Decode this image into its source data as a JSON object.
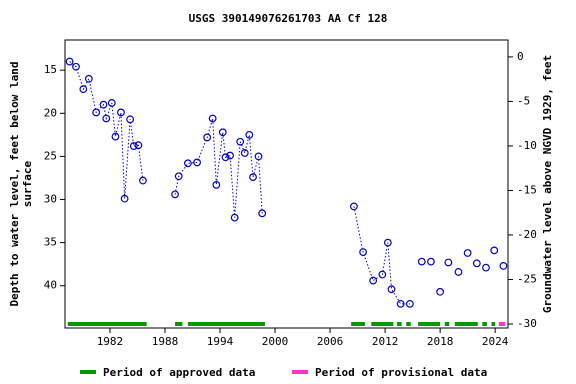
{
  "chart_data": {
    "type": "line",
    "title": "USGS 390149076261703 AA Cf 128",
    "y_label": "Depth to water level, feet below land surface",
    "y2_label": "Groundwater level above NGVD 1929, feet",
    "xlim": [
      1977.1,
      2025.4
    ],
    "xticks": [
      1982,
      1988,
      1994,
      2000,
      2006,
      2012,
      2018,
      2024
    ],
    "ylim": [
      11.5,
      44.9
    ],
    "y_inverted": true,
    "yticks": [
      15,
      20,
      25,
      30,
      35,
      40
    ],
    "y2lim": [
      -30.45,
      1.9
    ],
    "y2ticks": [
      0,
      -5,
      -10,
      -15,
      -20,
      -25,
      -30
    ],
    "grid": false,
    "series": [
      {
        "color": "#0000cc",
        "x": [
          1977.6,
          1978.3,
          1979.1,
          1979.7,
          1980.5,
          1981.3,
          1981.6,
          1982.2,
          1982.6,
          1983.2,
          1983.6,
          1984.2,
          1984.6,
          1985.1,
          1985.6,
          null,
          1989.1,
          1989.5,
          1990.5,
          1991.5,
          1992.6,
          1993.2,
          1993.6,
          1994.3,
          1994.6,
          1995.1,
          1995.6,
          1996.2,
          1996.7,
          1997.2,
          1997.6,
          1998.2,
          1998.6,
          null,
          2008.6,
          2009.6,
          2010.7,
          2011.7,
          2012.3,
          2012.7,
          2013.7,
          2014.7,
          null,
          2016.0,
          null,
          2017.0,
          null,
          2018.0,
          null,
          2018.9,
          null,
          2020.0,
          null,
          2021.0,
          null,
          2022.0,
          null,
          2023.0,
          null,
          2023.9,
          null,
          2024.9
        ],
        "values": [
          14.0,
          14.6,
          17.2,
          16.0,
          19.9,
          19.0,
          20.6,
          18.8,
          22.7,
          19.9,
          29.9,
          20.7,
          23.8,
          23.7,
          27.8,
          null,
          29.4,
          27.3,
          25.8,
          25.7,
          22.8,
          20.6,
          28.3,
          22.2,
          25.1,
          24.9,
          32.1,
          23.3,
          24.6,
          22.5,
          27.4,
          25.0,
          31.6,
          null,
          30.8,
          36.1,
          39.4,
          38.7,
          35.0,
          40.4,
          42.1,
          42.1,
          null,
          37.2,
          null,
          37.2,
          null,
          40.7,
          null,
          37.3,
          null,
          38.4,
          null,
          36.2,
          null,
          37.4,
          null,
          37.9,
          null,
          35.9,
          null,
          37.7
        ]
      }
    ],
    "periods": [
      {
        "name": "Period of approved data",
        "color": "#009900",
        "ranges": [
          [
            1977.4,
            1986.0
          ],
          [
            1989.1,
            1989.9
          ],
          [
            1990.5,
            1998.9
          ],
          [
            2008.3,
            2009.8
          ],
          [
            2010.5,
            2012.9
          ],
          [
            2013.3,
            2013.8
          ],
          [
            2014.3,
            2014.8
          ],
          [
            2015.6,
            2018.0
          ],
          [
            2018.5,
            2019.0
          ],
          [
            2019.6,
            2022.1
          ],
          [
            2022.6,
            2023.1
          ],
          [
            2023.6,
            2024.0
          ]
        ]
      },
      {
        "name": "Period of provisional data",
        "color": "#ff33cc",
        "ranges": [
          [
            2024.4,
            2025.1
          ]
        ]
      }
    ]
  }
}
